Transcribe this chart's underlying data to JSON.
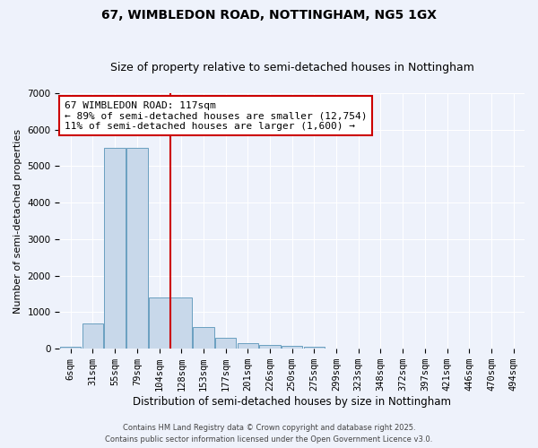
{
  "title1": "67, WIMBLEDON ROAD, NOTTINGHAM, NG5 1GX",
  "title2": "Size of property relative to semi-detached houses in Nottingham",
  "xlabel": "Distribution of semi-detached houses by size in Nottingham",
  "ylabel": "Number of semi-detached properties",
  "annotation_title": "67 WIMBLEDON ROAD: 117sqm",
  "annotation_line1": "← 89% of semi-detached houses are smaller (12,754)",
  "annotation_line2": "11% of semi-detached houses are larger (1,600) →",
  "footer1": "Contains HM Land Registry data © Crown copyright and database right 2025.",
  "footer2": "Contains public sector information licensed under the Open Government Licence v3.0.",
  "categories": [
    "6sqm",
    "31sqm",
    "55sqm",
    "79sqm",
    "104sqm",
    "128sqm",
    "153sqm",
    "177sqm",
    "201sqm",
    "226sqm",
    "250sqm",
    "275sqm",
    "299sqm",
    "323sqm",
    "348sqm",
    "372sqm",
    "397sqm",
    "421sqm",
    "446sqm",
    "470sqm",
    "494sqm"
  ],
  "values": [
    50,
    700,
    5500,
    5500,
    1400,
    1400,
    600,
    300,
    150,
    100,
    70,
    50,
    0,
    0,
    0,
    0,
    0,
    0,
    0,
    0,
    0
  ],
  "bar_color": "#c8d8ea",
  "bar_edge_color": "#6a9fc0",
  "red_line_index": 4.5,
  "ylim": [
    0,
    7000
  ],
  "yticks": [
    0,
    1000,
    2000,
    3000,
    4000,
    5000,
    6000,
    7000
  ],
  "background_color": "#eef2fb",
  "plot_bg_color": "#eef2fb",
  "red_color": "#cc0000",
  "annotation_box_color": "#ffffff",
  "annotation_box_edge": "#cc0000",
  "title1_fontsize": 10,
  "title2_fontsize": 9,
  "xlabel_fontsize": 8.5,
  "ylabel_fontsize": 8,
  "tick_fontsize": 7.5,
  "annotation_fontsize": 8
}
